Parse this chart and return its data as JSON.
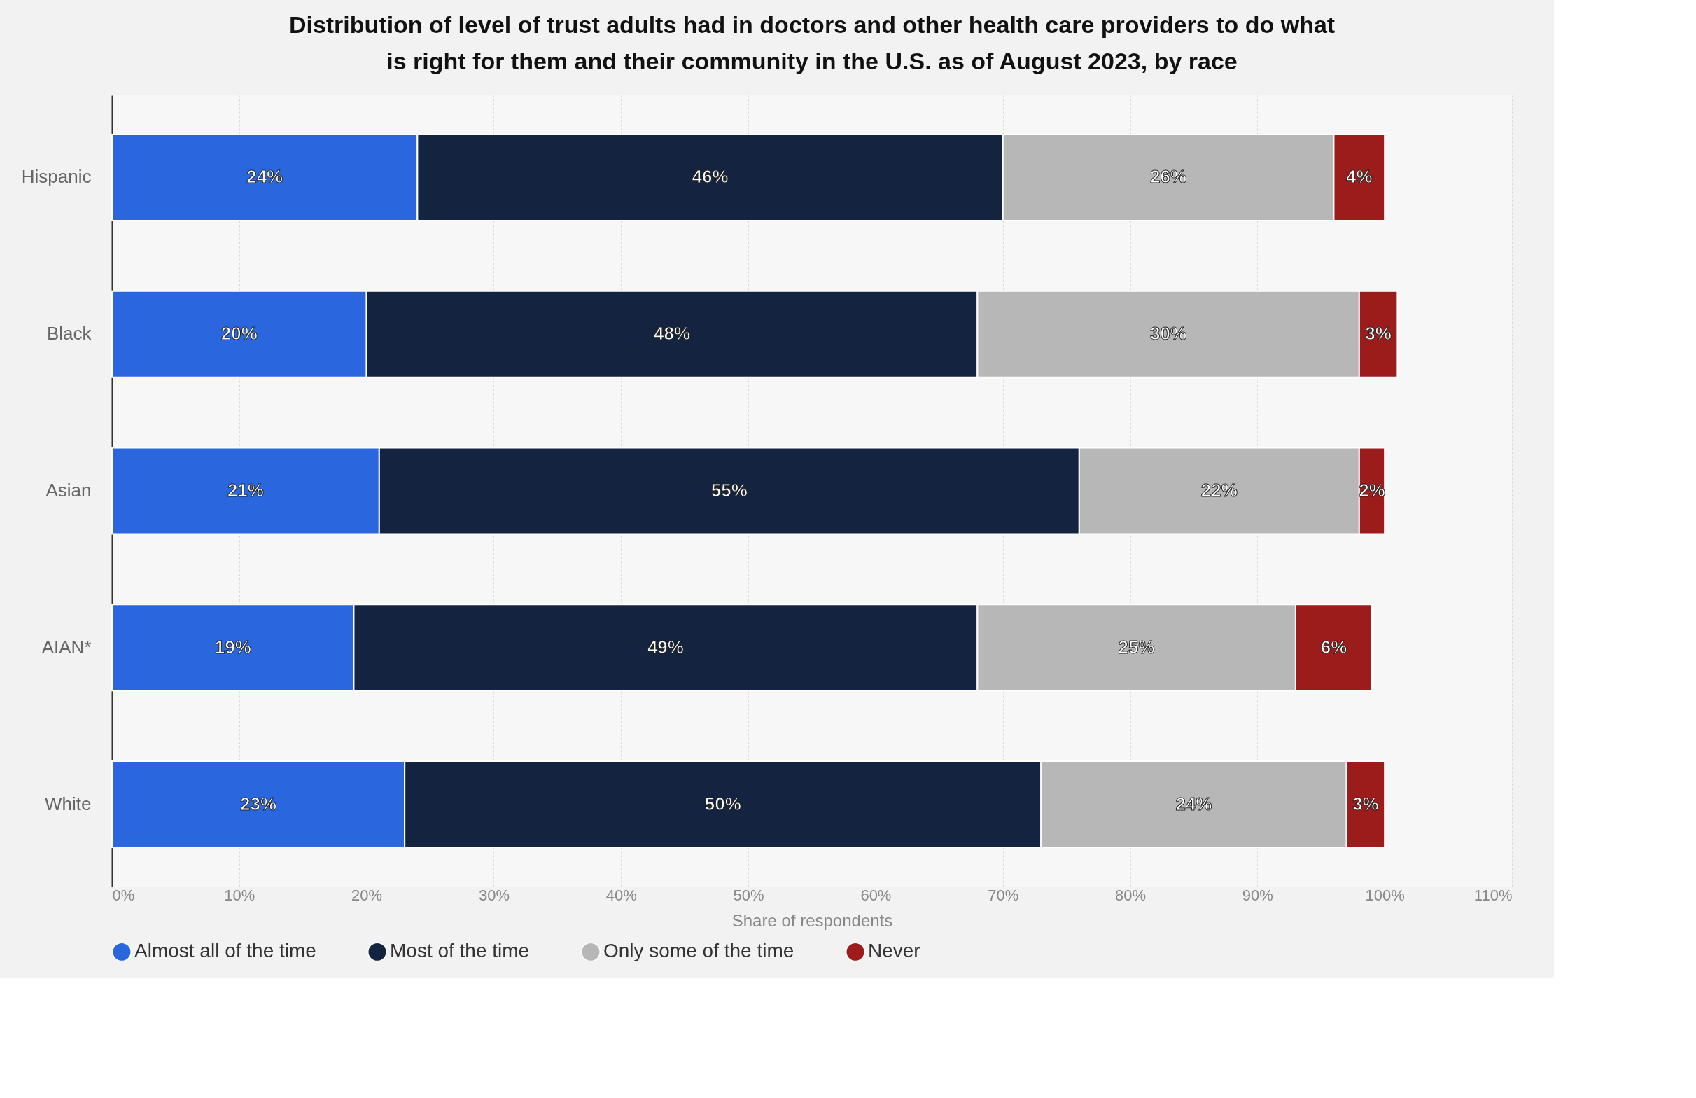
{
  "chart_data": {
    "type": "bar",
    "orientation": "horizontal",
    "stacked": true,
    "title": "Distribution of level of trust adults had in doctors and other health care providers to do what is right for them and their community in the U.S. as of August 2023, by race",
    "categories": [
      "Hispanic",
      "Black",
      "Asian",
      "AIAN*",
      "White"
    ],
    "series": [
      {
        "name": "Almost all of the time",
        "color": "#2a66dd",
        "values": [
          24,
          20,
          21,
          19,
          23
        ],
        "value_labels": [
          "24%",
          "20%",
          "21%",
          "19%",
          "23%"
        ]
      },
      {
        "name": "Most of the time",
        "color": "#14233f",
        "values": [
          46,
          48,
          55,
          49,
          50
        ],
        "value_labels": [
          "46%",
          "48%",
          "55%",
          "49%",
          "50%"
        ]
      },
      {
        "name": "Only some of the time",
        "color": "#b7b7b7",
        "values": [
          26,
          30,
          22,
          25,
          24
        ],
        "value_labels": [
          "26%",
          "30%",
          "22%",
          "25%",
          "24%"
        ]
      },
      {
        "name": "Never",
        "color": "#9c1c1c",
        "values": [
          4,
          3,
          2,
          6,
          3
        ],
        "value_labels": [
          "4%",
          "3%",
          "2%",
          "6%",
          "3%"
        ]
      }
    ],
    "xlabel": "Share of respondents",
    "xlim": [
      0,
      110
    ],
    "xticks": [
      {
        "value": 0,
        "label": "0%"
      },
      {
        "value": 10,
        "label": "10%"
      },
      {
        "value": 20,
        "label": "20%"
      },
      {
        "value": 30,
        "label": "30%"
      },
      {
        "value": 40,
        "label": "40%"
      },
      {
        "value": 50,
        "label": "50%"
      },
      {
        "value": 60,
        "label": "60%"
      },
      {
        "value": 70,
        "label": "70%"
      },
      {
        "value": 80,
        "label": "80%"
      },
      {
        "value": 90,
        "label": "90%"
      },
      {
        "value": 100,
        "label": "100%"
      },
      {
        "value": 110,
        "label": "110%"
      }
    ],
    "grid": "x",
    "legend": "bottom"
  }
}
